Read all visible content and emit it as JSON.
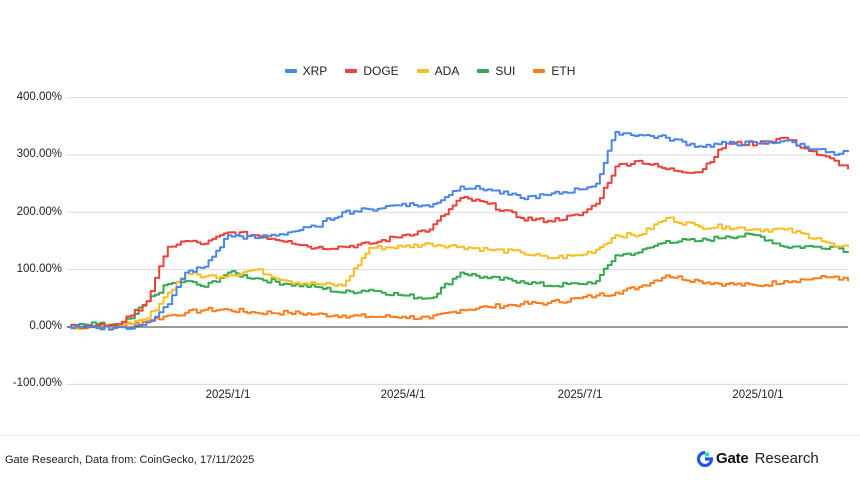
{
  "chart_data": {
    "type": "line",
    "title": "",
    "xlabel": "",
    "ylabel": "",
    "ylim": [
      -100,
      400
    ],
    "y_ticks": [
      "400.00%",
      "300.00%",
      "200.00%",
      "100.00%",
      "0.00%",
      "-100.00%"
    ],
    "y_tick_values": [
      400,
      300,
      200,
      100,
      0,
      -100
    ],
    "x_ticks": [
      "2025/1/1",
      "2025/4/1",
      "2025/7/1",
      "2025/10/1"
    ],
    "x_range": [
      "2024/10/10",
      "2025/11/17"
    ],
    "grid": true,
    "legend_position": "top",
    "x": [
      "2024/10/10",
      "2024/10/25",
      "2024/11/5",
      "2024/11/12",
      "2024/11/20",
      "2024/12/1",
      "2024/12/10",
      "2024/12/20",
      "2025/1/1",
      "2025/1/15",
      "2025/2/1",
      "2025/2/15",
      "2025/3/1",
      "2025/3/15",
      "2025/4/1",
      "2025/4/15",
      "2025/5/1",
      "2025/5/15",
      "2025/6/1",
      "2025/6/15",
      "2025/7/1",
      "2025/7/10",
      "2025/7/20",
      "2025/8/1",
      "2025/8/15",
      "2025/9/1",
      "2025/9/15",
      "2025/10/1",
      "2025/10/15",
      "2025/11/1",
      "2025/11/10",
      "2025/11/17"
    ],
    "series": [
      {
        "name": "XRP",
        "color": "#4a86e8",
        "values": [
          0,
          -2,
          0,
          -3,
          8,
          40,
          95,
          105,
          160,
          155,
          165,
          175,
          200,
          205,
          215,
          210,
          245,
          240,
          225,
          230,
          240,
          250,
          340,
          335,
          330,
          315,
          320,
          320,
          325,
          310,
          300,
          305
        ]
      },
      {
        "name": "DOGE",
        "color": "#e8433b",
        "values": [
          0,
          2,
          5,
          20,
          45,
          140,
          150,
          145,
          165,
          160,
          150,
          138,
          140,
          145,
          160,
          170,
          225,
          215,
          190,
          185,
          195,
          215,
          280,
          290,
          275,
          270,
          320,
          320,
          330,
          300,
          290,
          275
        ]
      },
      {
        "name": "ADA",
        "color": "#f6bf26",
        "values": [
          0,
          0,
          2,
          5,
          15,
          60,
          95,
          88,
          90,
          100,
          80,
          75,
          72,
          138,
          140,
          145,
          140,
          135,
          130,
          120,
          125,
          135,
          160,
          160,
          190,
          175,
          175,
          170,
          170,
          155,
          140,
          140
        ]
      },
      {
        "name": "SUI",
        "color": "#34a853",
        "values": [
          0,
          5,
          3,
          15,
          45,
          75,
          80,
          70,
          95,
          85,
          75,
          70,
          60,
          65,
          55,
          50,
          95,
          85,
          80,
          72,
          75,
          80,
          125,
          130,
          150,
          150,
          158,
          160,
          140,
          140,
          140,
          132
        ]
      },
      {
        "name": "ETH",
        "color": "#ff7b1c",
        "values": [
          0,
          0,
          2,
          5,
          10,
          20,
          25,
          30,
          30,
          25,
          25,
          22,
          20,
          18,
          18,
          15,
          30,
          35,
          40,
          42,
          50,
          55,
          60,
          70,
          90,
          80,
          75,
          72,
          80,
          85,
          88,
          80
        ]
      }
    ]
  },
  "legend": {
    "items": [
      {
        "label": "XRP",
        "color": "#4a86e8"
      },
      {
        "label": "DOGE",
        "color": "#e8433b"
      },
      {
        "label": "ADA",
        "color": "#f6bf26"
      },
      {
        "label": "SUI",
        "color": "#34a853"
      },
      {
        "label": "ETH",
        "color": "#ff7b1c"
      }
    ]
  },
  "axes": {
    "y_labels": [
      "400.00%",
      "300.00%",
      "200.00%",
      "100.00%",
      "0.00%",
      "-100.00%"
    ],
    "x_labels": [
      "2025/1/1",
      "2025/4/1",
      "2025/7/1",
      "2025/10/1"
    ]
  },
  "footer": {
    "source_note": "Gate Research, Data from: CoinGecko, 17/11/2025",
    "brand_name": "Gate",
    "brand_suffix": "Research",
    "brand_color": "#2354e6",
    "brand_accent": "#17e6a1"
  }
}
